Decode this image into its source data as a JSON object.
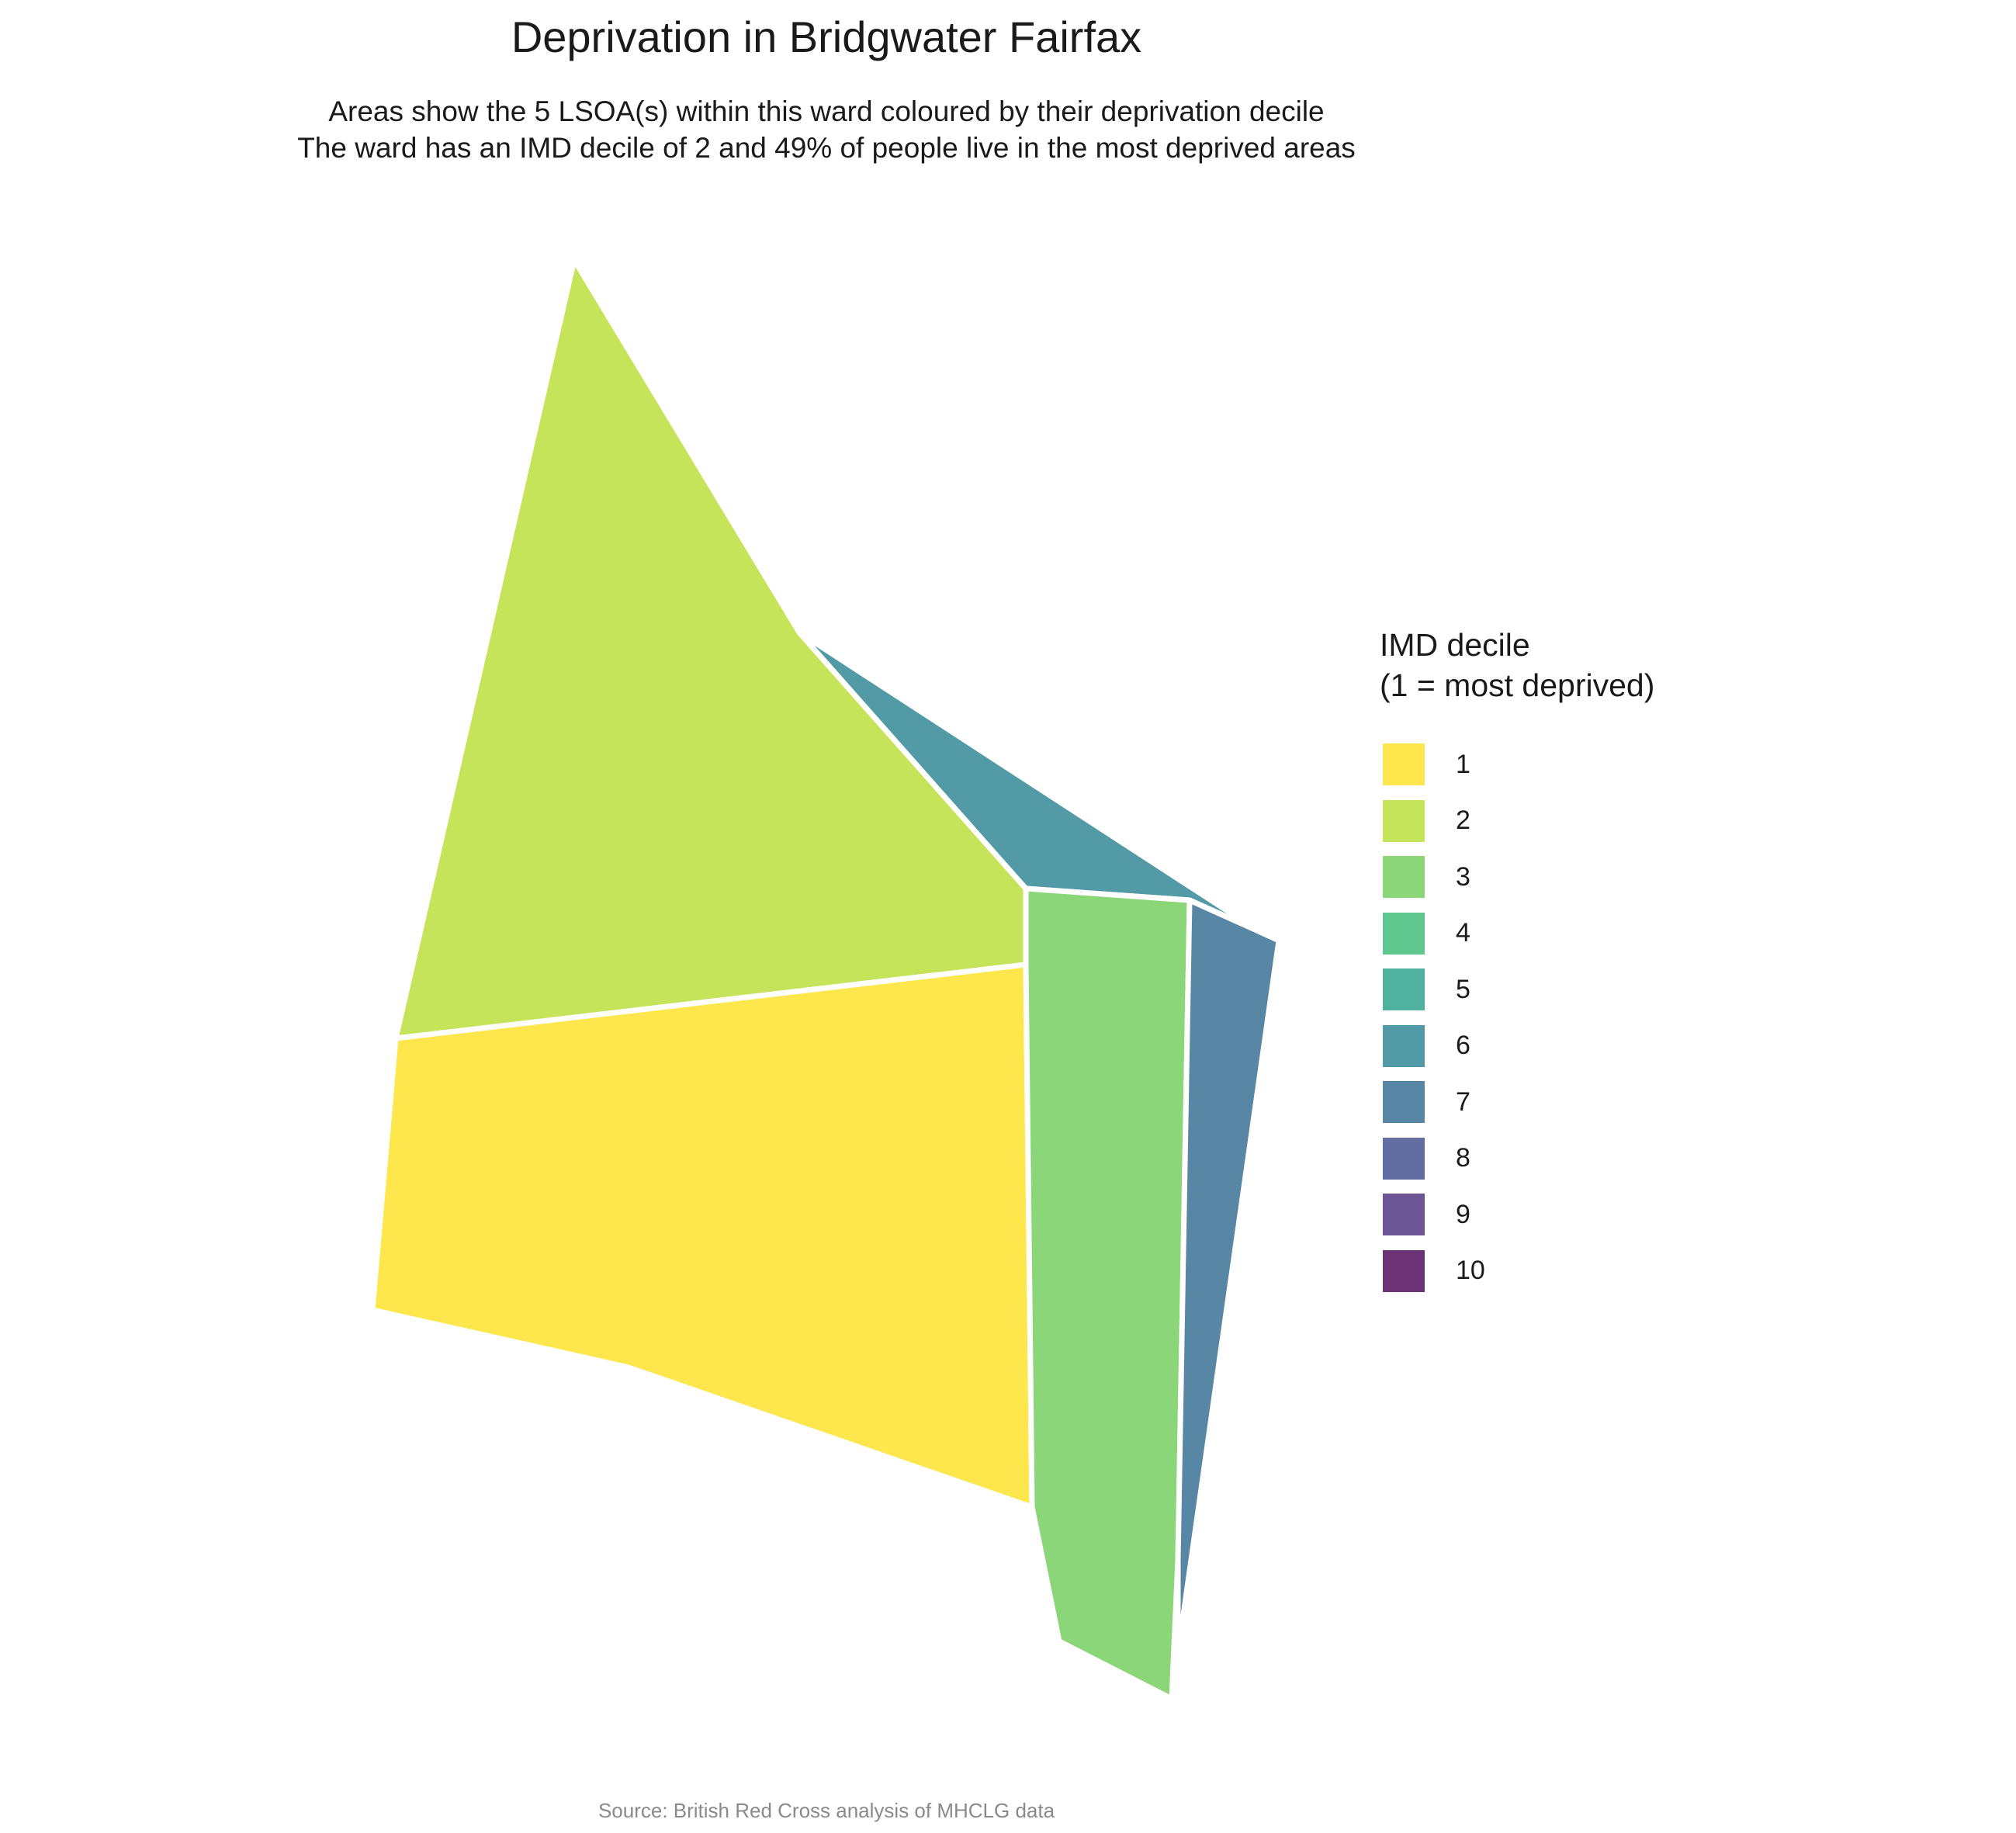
{
  "header": {
    "title": "Deprivation in Bridgwater Fairfax",
    "subtitle_line_1": "Areas show the 5 LSOA(s) within this ward coloured by their deprivation decile",
    "subtitle_line_2": "The ward has an IMD decile of 2 and 49% of people live in the most deprived areas"
  },
  "map": {
    "areas": [
      {
        "id": "lsoa-decile-2",
        "decile": 2
      },
      {
        "id": "lsoa-decile-6",
        "decile": 6
      },
      {
        "id": "lsoa-decile-1",
        "decile": 1
      },
      {
        "id": "lsoa-decile-3",
        "decile": 3
      },
      {
        "id": "lsoa-decile-7",
        "decile": 7
      }
    ],
    "border_color": "#ffffff"
  },
  "legend": {
    "title_line_1": "IMD decile",
    "title_line_2": "(1 = most deprived)",
    "items": [
      {
        "label": "1",
        "color": "#FDE74C"
      },
      {
        "label": "2",
        "color": "#C5E45A"
      },
      {
        "label": "3",
        "color": "#8BD679"
      },
      {
        "label": "4",
        "color": "#5FC78E"
      },
      {
        "label": "5",
        "color": "#4FB19E"
      },
      {
        "label": "6",
        "color": "#529BA6"
      },
      {
        "label": "7",
        "color": "#5886A5"
      },
      {
        "label": "8",
        "color": "#636DA2"
      },
      {
        "label": "9",
        "color": "#6B5595"
      },
      {
        "label": "10",
        "color": "#6B3275"
      }
    ]
  },
  "footer": {
    "source": "Source: British Red Cross analysis of MHCLG data"
  }
}
